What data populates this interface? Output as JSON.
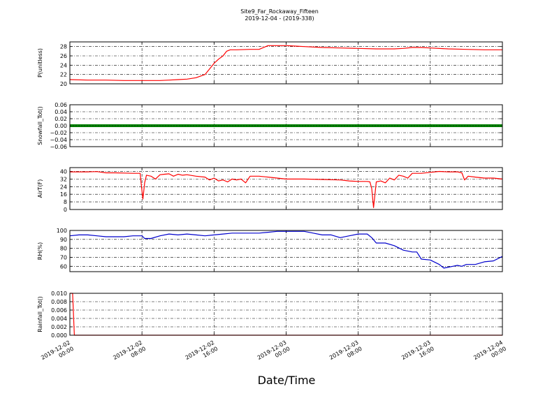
{
  "chart_data": {
    "type": "line",
    "title": "Site9_Far_Rockaway_Fifteen",
    "subtitle": "2019-12-04 - (2019-338)",
    "xlabel": "Date/Time",
    "x_range": [
      "2019-12-02 00:00",
      "2019-12-04 00:00"
    ],
    "x_ticks": [
      {
        "label": [
          "2019-12-02",
          "00:00"
        ],
        "hours": 0
      },
      {
        "label": [
          "2019-12-02",
          "08:00"
        ],
        "hours": 8
      },
      {
        "label": [
          "2019-12-02",
          "16:00"
        ],
        "hours": 16
      },
      {
        "label": [
          "2019-12-03",
          "00:00"
        ],
        "hours": 24
      },
      {
        "label": [
          "2019-12-03",
          "08:00"
        ],
        "hours": 32
      },
      {
        "label": [
          "2019-12-03",
          "16:00"
        ],
        "hours": 40
      },
      {
        "label": [
          "2019-12-04",
          "00:00"
        ],
        "hours": 48
      }
    ],
    "grid": true,
    "panels": [
      {
        "ylabel": "P(unitless)",
        "ylim": [
          20,
          29
        ],
        "yticks": [
          "20",
          "22",
          "24",
          "26",
          "28"
        ],
        "ytick_values": [
          20,
          22,
          24,
          26,
          28
        ],
        "color": "#ff0000",
        "style": "line",
        "series": [
          [
            0,
            20.9
          ],
          [
            2,
            20.8
          ],
          [
            4,
            20.8
          ],
          [
            6,
            20.7
          ],
          [
            8,
            20.7
          ],
          [
            10,
            20.7
          ],
          [
            11,
            20.8
          ],
          [
            12,
            20.9
          ],
          [
            13,
            21.0
          ],
          [
            14,
            21.3
          ],
          [
            15,
            22.0
          ],
          [
            15.5,
            23.2
          ],
          [
            16,
            24.4
          ],
          [
            16.5,
            25.3
          ],
          [
            17,
            26.0
          ],
          [
            17.4,
            27.0
          ],
          [
            17.8,
            27.3
          ],
          [
            18.5,
            27.3
          ],
          [
            20,
            27.4
          ],
          [
            21,
            27.4
          ],
          [
            22,
            28.2
          ],
          [
            23,
            28.2
          ],
          [
            24,
            28.2
          ],
          [
            25,
            28.1
          ],
          [
            26,
            28.0
          ],
          [
            28,
            27.8
          ],
          [
            30,
            27.7
          ],
          [
            32,
            27.6
          ],
          [
            34,
            27.5
          ],
          [
            36,
            27.5
          ],
          [
            37,
            27.6
          ],
          [
            38,
            27.8
          ],
          [
            39,
            27.8
          ],
          [
            40,
            27.7
          ],
          [
            42,
            27.5
          ],
          [
            44,
            27.4
          ],
          [
            46,
            27.3
          ],
          [
            48,
            27.3
          ]
        ]
      },
      {
        "ylabel": "Snowfall_Tot()",
        "ylim": [
          -0.06,
          0.06
        ],
        "yticks": [
          "−0.06",
          "−0.04",
          "−0.02",
          "0.00",
          "0.02",
          "0.04",
          "0.06"
        ],
        "ytick_values": [
          -0.06,
          -0.04,
          -0.02,
          0.0,
          0.02,
          0.04,
          0.06
        ],
        "color": "#008000",
        "style": "dense-line",
        "series": [
          [
            0,
            0
          ],
          [
            48,
            0
          ]
        ]
      },
      {
        "ylabel": "AirT(F)",
        "ylim": [
          0,
          44
        ],
        "yticks": [
          "0",
          "8",
          "16",
          "24",
          "32",
          "40"
        ],
        "ytick_values": [
          0,
          8,
          16,
          24,
          32,
          40
        ],
        "color": "#ff0000",
        "style": "line",
        "series": [
          [
            0,
            39.5
          ],
          [
            2,
            39.5
          ],
          [
            3,
            39.8
          ],
          [
            4,
            38.5
          ],
          [
            5,
            38.5
          ],
          [
            6,
            38.3
          ],
          [
            7,
            38.0
          ],
          [
            7.8,
            38.0
          ],
          [
            7.9,
            28
          ],
          [
            8.1,
            11
          ],
          [
            8.3,
            28
          ],
          [
            8.5,
            36
          ],
          [
            9,
            35
          ],
          [
            9.5,
            32
          ],
          [
            10,
            36.5
          ],
          [
            10.5,
            37
          ],
          [
            11,
            37.5
          ],
          [
            11.5,
            35
          ],
          [
            12,
            37
          ],
          [
            12.5,
            36
          ],
          [
            13,
            36.5
          ],
          [
            14,
            35
          ],
          [
            15,
            34
          ],
          [
            15.5,
            31
          ],
          [
            16,
            33
          ],
          [
            16.5,
            30
          ],
          [
            17,
            31
          ],
          [
            17.5,
            29
          ],
          [
            18,
            32
          ],
          [
            18.5,
            31
          ],
          [
            19,
            32
          ],
          [
            19.5,
            28
          ],
          [
            20,
            35
          ],
          [
            21,
            35
          ],
          [
            22,
            34
          ],
          [
            23,
            33
          ],
          [
            24,
            32
          ],
          [
            26,
            32
          ],
          [
            28,
            31.5
          ],
          [
            30,
            31
          ],
          [
            31,
            30
          ],
          [
            32,
            29.5
          ],
          [
            33,
            29.5
          ],
          [
            33.3,
            29
          ],
          [
            33.5,
            22
          ],
          [
            33.7,
            2
          ],
          [
            34,
            29
          ],
          [
            34.5,
            30
          ],
          [
            35,
            28
          ],
          [
            35.5,
            33
          ],
          [
            36,
            31
          ],
          [
            36.5,
            36
          ],
          [
            37,
            35
          ],
          [
            37.5,
            33
          ],
          [
            38,
            38
          ],
          [
            39,
            38
          ],
          [
            40,
            39
          ],
          [
            41,
            40
          ],
          [
            42,
            39.5
          ],
          [
            43,
            39.5
          ],
          [
            43.5,
            38.5
          ],
          [
            43.8,
            31
          ],
          [
            44.2,
            35
          ],
          [
            45,
            34
          ],
          [
            46,
            33
          ],
          [
            47,
            33
          ],
          [
            48,
            32
          ]
        ]
      },
      {
        "ylabel": "RH(%)",
        "ylim": [
          54,
          100
        ],
        "yticks": [
          "60",
          "70",
          "80",
          "90",
          "100"
        ],
        "ytick_values": [
          60,
          70,
          80,
          90,
          100
        ],
        "color": "#0000cc",
        "style": "line",
        "series": [
          [
            0,
            94
          ],
          [
            1,
            95
          ],
          [
            2,
            95
          ],
          [
            3,
            94
          ],
          [
            4,
            93
          ],
          [
            5,
            93
          ],
          [
            6,
            93
          ],
          [
            7,
            94
          ],
          [
            8,
            94
          ],
          [
            8.3,
            91
          ],
          [
            9,
            91
          ],
          [
            10,
            94
          ],
          [
            11,
            96
          ],
          [
            12,
            95
          ],
          [
            13,
            96
          ],
          [
            14,
            95
          ],
          [
            15,
            94
          ],
          [
            16,
            95
          ],
          [
            17,
            96
          ],
          [
            18,
            97
          ],
          [
            19,
            97
          ],
          [
            20,
            97
          ],
          [
            21,
            97
          ],
          [
            22,
            98
          ],
          [
            23,
            99
          ],
          [
            24,
            99
          ],
          [
            25,
            99
          ],
          [
            26,
            99
          ],
          [
            27,
            97
          ],
          [
            28,
            95
          ],
          [
            29,
            95
          ],
          [
            30,
            92
          ],
          [
            31,
            94
          ],
          [
            32,
            96
          ],
          [
            33,
            96
          ],
          [
            33.5,
            92
          ],
          [
            34,
            86
          ],
          [
            35,
            86
          ],
          [
            36,
            83
          ],
          [
            37,
            78
          ],
          [
            38,
            76
          ],
          [
            38.5,
            76
          ],
          [
            39,
            68
          ],
          [
            40,
            67
          ],
          [
            41,
            62
          ],
          [
            41.5,
            58
          ],
          [
            42,
            59
          ],
          [
            42.5,
            60
          ],
          [
            43,
            61
          ],
          [
            43.5,
            60
          ],
          [
            44,
            62
          ],
          [
            45,
            62
          ],
          [
            46,
            65
          ],
          [
            47,
            66
          ],
          [
            48,
            71
          ]
        ]
      },
      {
        "ylabel": "Rainfall_Tot()",
        "ylim": [
          0,
          0.01
        ],
        "yticks": [
          "0.000",
          "0.002",
          "0.004",
          "0.006",
          "0.008",
          "0.010"
        ],
        "ytick_values": [
          0,
          0.002,
          0.004,
          0.006,
          0.008,
          0.01
        ],
        "color": "#ff0000",
        "style": "line",
        "series": [
          [
            0,
            0.01
          ],
          [
            0.3,
            0.01
          ],
          [
            0.5,
            0
          ],
          [
            48,
            0
          ]
        ]
      }
    ]
  }
}
